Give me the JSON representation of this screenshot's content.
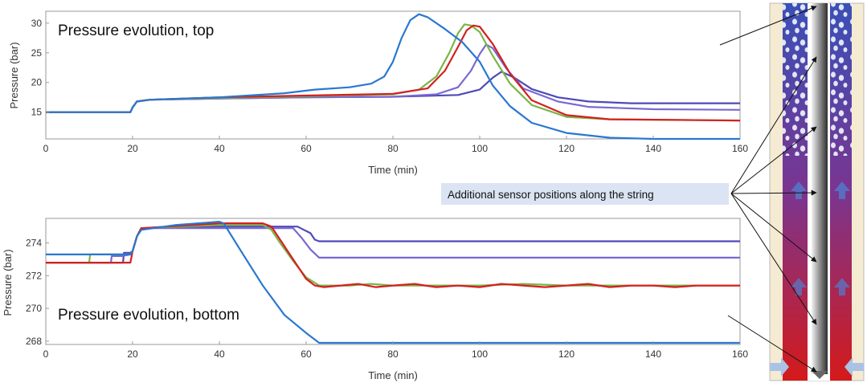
{
  "colors": {
    "blue": "#2878d0",
    "green": "#7ab648",
    "red": "#d42020",
    "violet_dark": "#4d4ab8",
    "violet_light": "#7a68d0",
    "callout_bg": "#dbe4f3"
  },
  "callout": {
    "text": "Additional sensor positions along the string"
  },
  "chart_data": [
    {
      "type": "line",
      "title": "Pressure evolution, top",
      "xlabel": "Time (min)",
      "ylabel": "Pressure (bar)",
      "xlim": [
        0,
        160
      ],
      "ylim": [
        10.5,
        32
      ],
      "xticks": [
        0,
        20,
        40,
        60,
        80,
        100,
        120,
        140,
        160
      ],
      "yticks": [
        15,
        20,
        25,
        30
      ],
      "grid": false,
      "series": [
        {
          "color": "#4d4ab8",
          "x": [
            0,
            19.5,
            20,
            21,
            24,
            40,
            60,
            80,
            95,
            100,
            103,
            105,
            108,
            112,
            118,
            125,
            135,
            160
          ],
          "y": [
            15,
            15,
            15.8,
            16.8,
            17.1,
            17.3,
            17.5,
            17.6,
            17.9,
            18.8,
            20.8,
            21.8,
            20.8,
            18.9,
            17.5,
            16.8,
            16.5,
            16.5
          ]
        },
        {
          "color": "#7a68d0",
          "x": [
            0,
            19.5,
            20,
            21,
            24,
            40,
            60,
            80,
            90,
            95,
            98,
            100,
            101.5,
            103,
            106,
            110,
            118,
            125,
            140,
            160
          ],
          "y": [
            15,
            15,
            15.8,
            16.8,
            17.1,
            17.3,
            17.5,
            17.6,
            18,
            19.2,
            22,
            24.8,
            26.4,
            25.8,
            22.5,
            19,
            16.8,
            15.9,
            15.5,
            15.4
          ]
        },
        {
          "color": "#7ab648",
          "x": [
            0,
            19.5,
            20,
            21,
            24,
            40,
            60,
            80,
            86,
            90,
            93,
            95,
            96.5,
            98,
            100,
            103,
            107,
            112,
            120,
            130,
            160
          ],
          "y": [
            15,
            15,
            15.8,
            16.8,
            17.1,
            17.4,
            17.7,
            18,
            18.8,
            21,
            25,
            28.3,
            29.8,
            29.6,
            28.5,
            24.5,
            19.8,
            16.2,
            14.2,
            13.8,
            13.6
          ]
        },
        {
          "color": "#d42020",
          "x": [
            0,
            19.5,
            20,
            21,
            24,
            40,
            60,
            80,
            88,
            92,
            95,
            97,
            98.5,
            100,
            103,
            107,
            112,
            120,
            130,
            160
          ],
          "y": [
            15,
            15,
            15.8,
            16.8,
            17.1,
            17.5,
            17.8,
            18.1,
            19,
            22,
            26,
            28.8,
            29.6,
            29.4,
            26.5,
            21.5,
            17,
            14.5,
            13.8,
            13.6
          ]
        },
        {
          "color": "#2878d0",
          "x": [
            0,
            19.5,
            20,
            21,
            24,
            40,
            55,
            62,
            70,
            75,
            78,
            80,
            82,
            84,
            86,
            88,
            92,
            96,
            100,
            103,
            107,
            112,
            120,
            130,
            140,
            160
          ],
          "y": [
            15,
            15,
            15.8,
            16.8,
            17.1,
            17.5,
            18.2,
            18.8,
            19.2,
            19.8,
            21,
            23.5,
            27.5,
            30.5,
            31.5,
            31,
            29,
            26.8,
            23.5,
            19.5,
            16,
            13.2,
            11.5,
            10.7,
            10.5,
            10.5
          ]
        }
      ]
    },
    {
      "type": "line",
      "title": "Pressure evolution, bottom",
      "xlabel": "Time (min)",
      "ylabel": "Pressure (bar)",
      "xlim": [
        0,
        160
      ],
      "ylim": [
        267.8,
        275.5
      ],
      "xticks": [
        0,
        20,
        40,
        60,
        80,
        100,
        120,
        140,
        160
      ],
      "yticks": [
        268,
        270,
        272,
        274
      ],
      "grid": false,
      "series": [
        {
          "color": "#4d4ab8",
          "x": [
            0,
            17.8,
            18,
            19.5,
            20,
            21,
            22,
            40,
            58,
            61,
            62,
            63,
            80,
            100,
            120,
            140,
            160
          ],
          "y": [
            272.8,
            272.8,
            273.4,
            273.4,
            273.5,
            274.4,
            274.9,
            275,
            275,
            274.6,
            274.2,
            274.1,
            274.1,
            274.1,
            274.1,
            274.1,
            274.1
          ]
        },
        {
          "color": "#7a68d0",
          "x": [
            0,
            15,
            15.2,
            17.5,
            19.5,
            20,
            21,
            22,
            40,
            57,
            59,
            61,
            63,
            80,
            100,
            120,
            140,
            160
          ],
          "y": [
            272.8,
            272.8,
            273.2,
            273.2,
            273.3,
            273.5,
            274.4,
            274.9,
            274.9,
            274.9,
            274.3,
            273.6,
            273.1,
            273.1,
            273.1,
            273.1,
            273.1,
            273.1
          ]
        },
        {
          "color": "#7ab648",
          "x": [
            0,
            10,
            10.2,
            19.5,
            20,
            21,
            22,
            40,
            50,
            52,
            54,
            57,
            60,
            63,
            65,
            70,
            75,
            80,
            90,
            100,
            110,
            120,
            130,
            140,
            150,
            160
          ],
          "y": [
            272.8,
            272.8,
            273.3,
            273.3,
            273.5,
            274.4,
            274.9,
            275.1,
            275.1,
            274.8,
            274,
            272.9,
            271.9,
            271.4,
            271.4,
            271.4,
            271.5,
            271.4,
            271.4,
            271.4,
            271.5,
            271.4,
            271.4,
            271.4,
            271.4,
            271.4
          ]
        },
        {
          "color": "#d42020",
          "x": [
            0,
            19.5,
            20,
            21,
            22,
            40,
            50,
            52,
            54,
            57,
            60,
            62,
            64,
            68,
            72,
            76,
            80,
            85,
            90,
            95,
            100,
            105,
            110,
            115,
            120,
            125,
            130,
            135,
            140,
            145,
            150,
            155,
            160
          ],
          "y": [
            272.8,
            272.8,
            273.5,
            274.4,
            274.9,
            275.2,
            275.2,
            275,
            274.2,
            273,
            271.8,
            271.4,
            271.3,
            271.4,
            271.5,
            271.3,
            271.4,
            271.5,
            271.3,
            271.4,
            271.3,
            271.5,
            271.4,
            271.3,
            271.4,
            271.5,
            271.3,
            271.4,
            271.4,
            271.3,
            271.4,
            271.4,
            271.4
          ]
        },
        {
          "color": "#2878d0",
          "x": [
            0,
            19.5,
            20,
            21,
            22,
            30,
            40,
            41,
            45,
            50,
            55,
            60,
            63,
            80,
            100,
            120,
            140,
            160
          ],
          "y": [
            273.3,
            273.3,
            273.5,
            274.4,
            274.8,
            275.1,
            275.3,
            275.2,
            273.5,
            271.4,
            269.6,
            268.5,
            267.9,
            267.9,
            267.9,
            267.9,
            267.9,
            267.9
          ]
        }
      ]
    }
  ]
}
